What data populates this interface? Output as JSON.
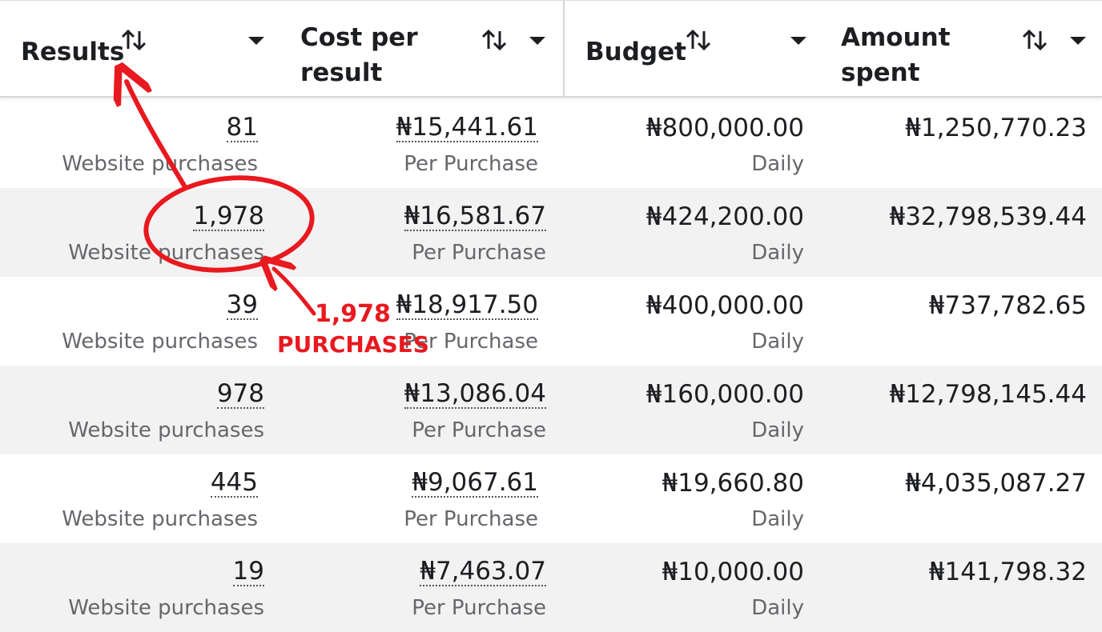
{
  "table": {
    "headers": [
      "Results",
      "Cost per result",
      "Budget",
      "Amount spent"
    ],
    "rows": [
      [
        {
          "text": "81",
          "sub": "Website purchases"
        },
        {
          "text": "₦15,441.61",
          "sub": "Per Purchase"
        },
        {
          "text": "₦800,000.00",
          "sub": "Daily"
        },
        {
          "text": "₦1,250,770.23"
        }
      ],
      [
        {
          "text": "1,978",
          "sub": "Website purchases"
        },
        {
          "text": "₦16,581.67",
          "sub": "Per Purchase"
        },
        {
          "text": "₦424,200.00",
          "sub": "Daily"
        },
        {
          "text": "₦32,798,539.44"
        }
      ],
      [
        {
          "text": "39",
          "sub": "Website purchases"
        },
        {
          "text": "₦18,917.50",
          "sub": "Per Purchase"
        },
        {
          "text": "₦400,000.00",
          "sub": "Daily"
        },
        {
          "text": "₦737,782.65"
        }
      ],
      [
        {
          "text": "978",
          "sub": "Website purchases"
        },
        {
          "text": "₦13,086.04",
          "sub": "Per Purchase"
        },
        {
          "text": "₦160,000.00",
          "sub": "Daily"
        },
        {
          "text": "₦12,798,145.44"
        }
      ],
      [
        {
          "text": "445",
          "sub": "Website purchases"
        },
        {
          "text": "₦9,067.61",
          "sub": "Per Purchase"
        },
        {
          "text": "₦19,660.80",
          "sub": "Daily"
        },
        {
          "text": "₦4,035,087.27"
        }
      ],
      [
        {
          "text": "19",
          "sub": "Website purchases"
        },
        {
          "text": "₦7,463.07",
          "sub": "Per Purchase"
        },
        {
          "text": "₦10,000.00",
          "sub": "Daily"
        },
        {
          "text": "₦141,798.32"
        }
      ]
    ]
  },
  "annotation": {
    "lines": [
      "1,978",
      "PURCHASES"
    ]
  }
}
